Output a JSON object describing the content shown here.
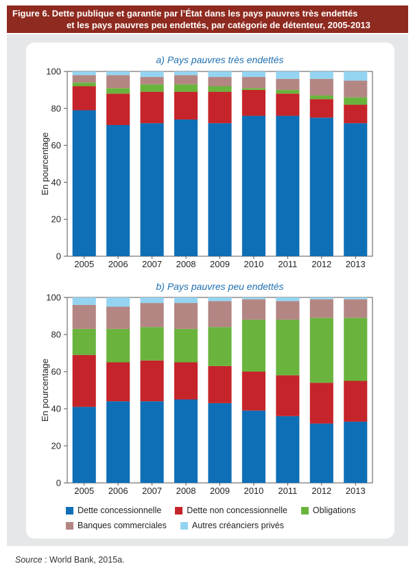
{
  "figure": {
    "title_line1": "Figure 6. Dette publique et garantie par l’État dans les pays pauvres très endettés",
    "title_line2": "et les pays pauvres peu endettés, par catégorie de détenteur, 2005-2013"
  },
  "source": {
    "label": "Source",
    "text": " : World Bank, 2015a."
  },
  "colors": {
    "Dette concessionnelle": "#0f6fb6",
    "Dette non concessionnelle": "#c5242a",
    "Obligations": "#6ab43e",
    "Banques commerciales": "#b38683",
    "Autres créanciers privés": "#94d4f1"
  },
  "chart_data": [
    {
      "type": "bar",
      "stacked": true,
      "title": "a) Pays pauvres très endettés",
      "ylabel": "En pourcentage",
      "ylim": [
        0,
        100
      ],
      "yticks": [
        0,
        20,
        40,
        60,
        80,
        100
      ],
      "categories": [
        "2005",
        "2006",
        "2007",
        "2008",
        "2009",
        "2010",
        "2011",
        "2012",
        "2013"
      ],
      "series": [
        {
          "name": "Dette concessionnelle",
          "values": [
            79,
            71,
            72,
            74,
            72,
            76,
            76,
            75,
            72
          ]
        },
        {
          "name": "Dette non concessionnelle",
          "values": [
            13,
            17,
            17,
            15,
            17,
            14,
            12,
            10,
            10
          ]
        },
        {
          "name": "Obligations",
          "values": [
            2,
            3,
            4,
            4,
            3,
            1,
            2,
            2,
            4
          ]
        },
        {
          "name": "Banques commerciales",
          "values": [
            4,
            7,
            4,
            5,
            5,
            6,
            6,
            9,
            9
          ]
        },
        {
          "name": "Autres créanciers privés",
          "values": [
            2,
            2,
            3,
            2,
            3,
            3,
            4,
            4,
            5
          ]
        }
      ]
    },
    {
      "type": "bar",
      "stacked": true,
      "title": "b) Pays pauvres peu endettés",
      "ylabel": "En pourcentage",
      "ylim": [
        0,
        100
      ],
      "yticks": [
        0,
        20,
        40,
        60,
        80,
        100
      ],
      "categories": [
        "2005",
        "2006",
        "2007",
        "2008",
        "2009",
        "2010",
        "2011",
        "2012",
        "2013"
      ],
      "series": [
        {
          "name": "Dette concessionnelle",
          "values": [
            41,
            44,
            44,
            45,
            43,
            39,
            36,
            32,
            33
          ]
        },
        {
          "name": "Dette non concessionnelle",
          "values": [
            28,
            21,
            22,
            20,
            20,
            21,
            22,
            22,
            22
          ]
        },
        {
          "name": "Obligations",
          "values": [
            14,
            18,
            18,
            18,
            21,
            28,
            30,
            35,
            34
          ]
        },
        {
          "name": "Banques commerciales",
          "values": [
            13,
            12,
            13,
            14,
            14,
            11,
            10,
            10,
            10
          ]
        },
        {
          "name": "Autres créanciers privés",
          "values": [
            4,
            5,
            3,
            3,
            2,
            1,
            2,
            1,
            1
          ]
        }
      ]
    }
  ],
  "legend": {
    "rows": [
      [
        "Dette concessionnelle",
        "Dette non concessionnelle",
        "Obligations"
      ],
      [
        "Banques commerciales",
        "Autres créanciers privés"
      ]
    ]
  }
}
